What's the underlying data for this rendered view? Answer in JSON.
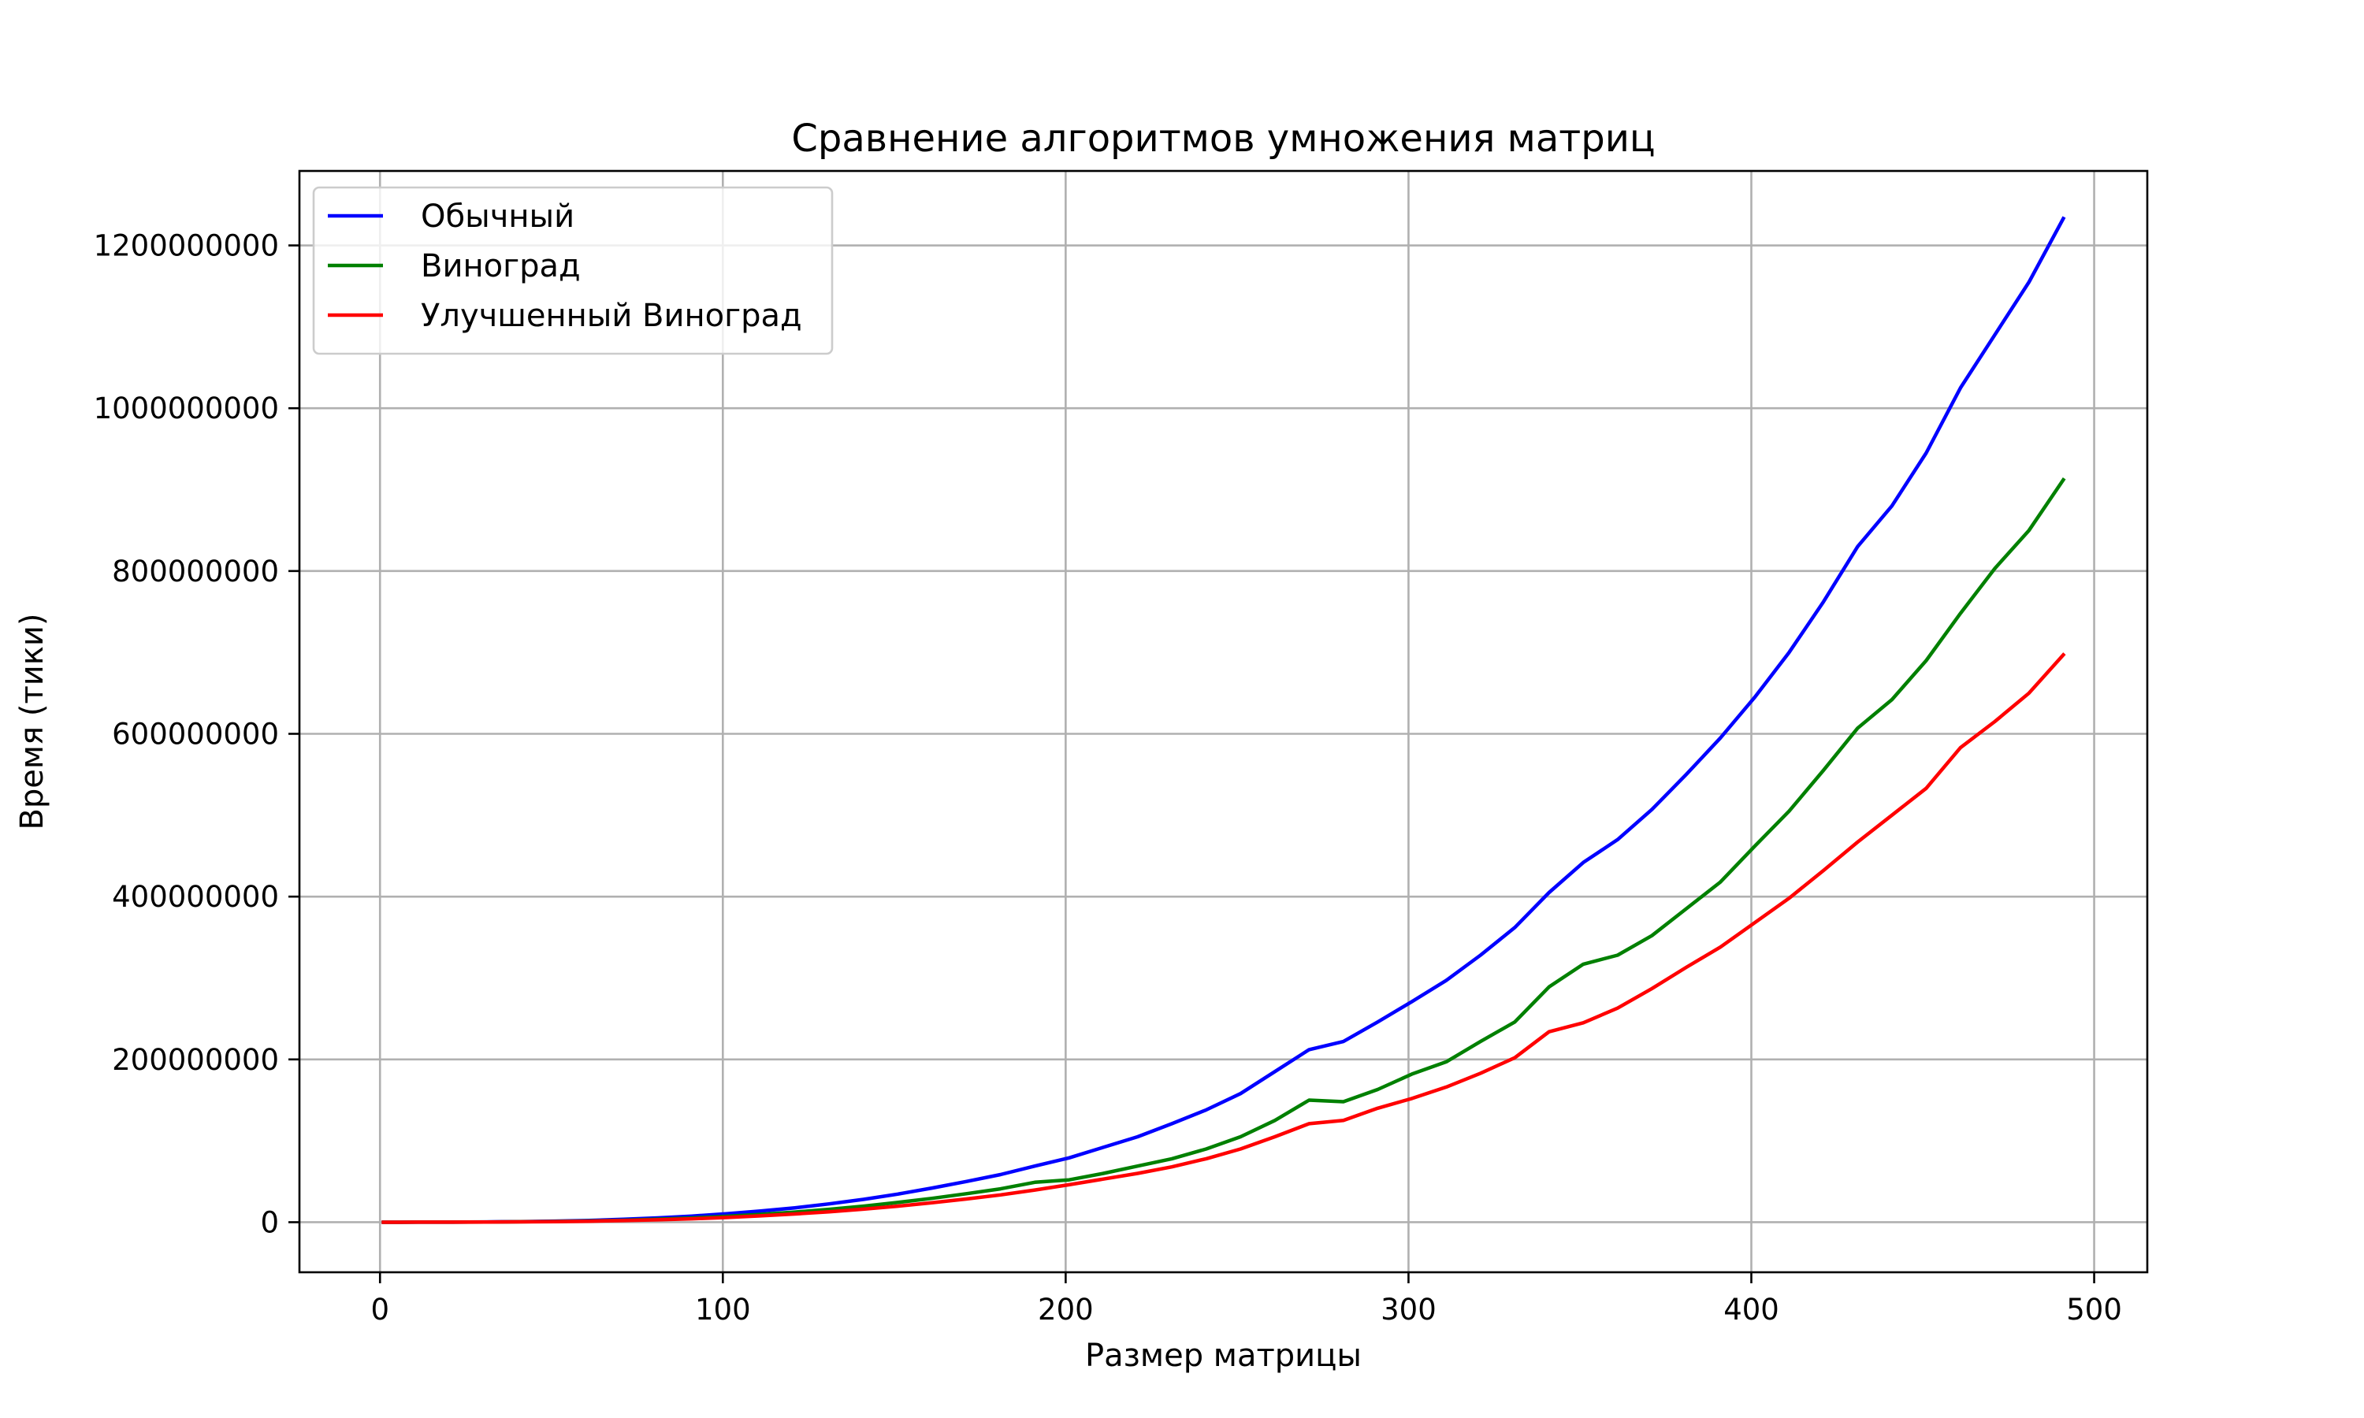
{
  "chart_data": {
    "type": "line",
    "title": "Сравнение алгоритмов умножения матриц",
    "xlabel": "Размер матрицы",
    "ylabel": "Время (тики)",
    "xlim": [
      -23.5,
      515.5
    ],
    "ylim": [
      -61500000,
      1291500000
    ],
    "xticks": [
      0,
      100,
      200,
      300,
      400,
      500
    ],
    "yticks": [
      0,
      200000000,
      400000000,
      600000000,
      800000000,
      1000000000,
      1200000000
    ],
    "xtick_labels": [
      "0",
      "100",
      "200",
      "300",
      "400",
      "500"
    ],
    "ytick_labels": [
      "0",
      "200000000",
      "400000000",
      "600000000",
      "800000000",
      "1000000000",
      "1200000000"
    ],
    "grid": true,
    "legend_position": "top-left",
    "x": [
      1,
      11,
      21,
      31,
      41,
      51,
      61,
      71,
      81,
      91,
      101,
      111,
      121,
      131,
      141,
      151,
      161,
      171,
      181,
      191,
      201,
      211,
      221,
      231,
      241,
      251,
      261,
      271,
      281,
      291,
      301,
      311,
      321,
      331,
      341,
      351,
      361,
      371,
      381,
      391,
      401,
      411,
      421,
      431,
      441,
      451,
      461,
      471,
      481,
      491
    ],
    "series": [
      {
        "name": "Обычный",
        "color": "#0000ff",
        "values": [
          0,
          10000,
          90000,
          300000,
          700000,
          1300000,
          2200000,
          3500000,
          5300000,
          7500000,
          10300000,
          13700000,
          17700000,
          22500000,
          28000000,
          34500000,
          42000000,
          50000000,
          58500000,
          69000000,
          79000000,
          92000000,
          105000000,
          121000000,
          138000000,
          158000000,
          185000000,
          212000000,
          222000000,
          246000000,
          271000000,
          297000000,
          328000000,
          362000000,
          405000000,
          442000000,
          470000000,
          507000000,
          550000000,
          595000000,
          645000000,
          700000000,
          762000000,
          830000000,
          880000000,
          945000000,
          1025000000,
          1090000000,
          1155000000,
          1233000000
        ]
      },
      {
        "name": "Виноград",
        "color": "#008000",
        "values": [
          0,
          10000,
          70000,
          200000,
          500000,
          900000,
          1500000,
          2400000,
          3700000,
          5200000,
          7200000,
          9600000,
          12400000,
          15800000,
          19700000,
          24200000,
          29300000,
          35000000,
          41000000,
          49000000,
          52000000,
          60000000,
          69000000,
          78000000,
          90000000,
          105000000,
          125000000,
          150000000,
          148000000,
          163000000,
          182000000,
          197000000,
          222000000,
          246000000,
          289000000,
          317000000,
          328000000,
          352000000,
          385000000,
          418000000,
          462000000,
          505000000,
          555000000,
          607000000,
          642000000,
          690000000,
          748000000,
          803000000,
          850000000,
          912000000
        ]
      },
      {
        "name": "Улучшенный Виноград",
        "color": "#ff0000",
        "values": [
          0,
          10000,
          60000,
          170000,
          400000,
          700000,
          1200000,
          2000000,
          3000000,
          4200000,
          5800000,
          7800000,
          10100000,
          12800000,
          16000000,
          19700000,
          23900000,
          28500000,
          33500000,
          39500000,
          46000000,
          53000000,
          60000000,
          68000000,
          78000000,
          90000000,
          105000000,
          121000000,
          125000000,
          140000000,
          152000000,
          166000000,
          183000000,
          202000000,
          234000000,
          245000000,
          263000000,
          287000000,
          313000000,
          338000000,
          368000000,
          398000000,
          432000000,
          467000000,
          500000000,
          533000000,
          583000000,
          615000000,
          650000000,
          697000000
        ]
      }
    ]
  }
}
